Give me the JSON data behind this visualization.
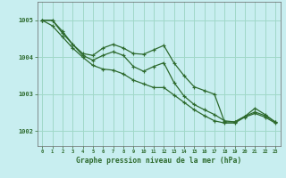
{
  "xlabel": "Graphe pression niveau de la mer (hPa)",
  "background_color": "#c8eef0",
  "grid_color": "#a0d8c8",
  "line_color": "#2d6a2d",
  "x_ticks": [
    0,
    1,
    2,
    3,
    4,
    5,
    6,
    7,
    8,
    9,
    10,
    11,
    12,
    13,
    14,
    15,
    16,
    17,
    18,
    19,
    20,
    21,
    22,
    23
  ],
  "ylim": [
    1001.6,
    1005.5
  ],
  "yticks": [
    1002,
    1003,
    1004,
    1005
  ],
  "series": [
    [
      1005.0,
      1005.0,
      1004.7,
      1004.35,
      1004.1,
      1004.05,
      1004.25,
      1004.35,
      1004.25,
      1004.1,
      1004.08,
      1004.2,
      1004.32,
      1003.85,
      1003.5,
      1003.2,
      1003.1,
      1003.0,
      1002.25,
      1002.25,
      1002.4,
      1002.62,
      1002.45,
      1002.25
    ],
    [
      1005.0,
      1005.0,
      1004.65,
      1004.35,
      1004.05,
      1003.92,
      1004.05,
      1004.15,
      1004.05,
      1003.75,
      1003.62,
      1003.75,
      1003.85,
      1003.32,
      1002.95,
      1002.72,
      1002.58,
      1002.45,
      1002.28,
      1002.25,
      1002.4,
      1002.52,
      1002.42,
      1002.25
    ],
    [
      1005.0,
      1004.85,
      1004.55,
      1004.25,
      1004.0,
      1003.78,
      1003.68,
      1003.65,
      1003.55,
      1003.38,
      1003.28,
      1003.18,
      1003.18,
      1002.98,
      1002.78,
      1002.58,
      1002.42,
      1002.28,
      1002.22,
      1002.22,
      1002.38,
      1002.48,
      1002.38,
      1002.22
    ]
  ]
}
